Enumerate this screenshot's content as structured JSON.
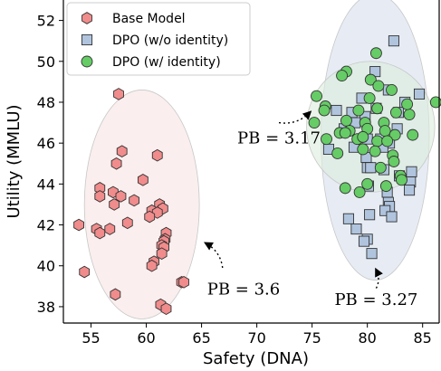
{
  "chart_data": {
    "type": "scatter",
    "xlabel": "Safety (DNA)",
    "ylabel": "Utility (MMLU)",
    "xlim": [
      52.5,
      86.5
    ],
    "ylim": [
      37.2,
      53.0
    ],
    "xticks": [
      55,
      60,
      65,
      70,
      75,
      80,
      85
    ],
    "yticks": [
      38,
      40,
      42,
      44,
      46,
      48,
      50,
      52
    ],
    "grid": false,
    "legend_position": "top-left",
    "series": [
      {
        "name": "Base Model",
        "marker": "hexagon",
        "color": "#f08c8c",
        "edge": "#333333",
        "points": [
          [
            57.5,
            48.4
          ],
          [
            57.8,
            45.6
          ],
          [
            61.0,
            45.4
          ],
          [
            57.3,
            45.0
          ],
          [
            59.7,
            44.2
          ],
          [
            55.8,
            43.8
          ],
          [
            57.0,
            43.6
          ],
          [
            55.8,
            43.4
          ],
          [
            57.7,
            43.4
          ],
          [
            58.9,
            43.2
          ],
          [
            57.1,
            43.0
          ],
          [
            61.2,
            43.0
          ],
          [
            61.5,
            42.8
          ],
          [
            60.5,
            42.7
          ],
          [
            61.0,
            42.6
          ],
          [
            60.3,
            42.4
          ],
          [
            58.3,
            42.1
          ],
          [
            53.9,
            42.0
          ],
          [
            55.5,
            41.8
          ],
          [
            56.7,
            41.8
          ],
          [
            55.8,
            41.6
          ],
          [
            61.8,
            41.6
          ],
          [
            61.7,
            41.3
          ],
          [
            61.6,
            41.2
          ],
          [
            61.4,
            41.0
          ],
          [
            61.6,
            40.9
          ],
          [
            61.4,
            40.6
          ],
          [
            60.7,
            40.2
          ],
          [
            60.5,
            40.0
          ],
          [
            54.4,
            39.7
          ],
          [
            63.2,
            39.2
          ],
          [
            63.4,
            39.2
          ],
          [
            57.2,
            38.6
          ],
          [
            61.3,
            38.1
          ],
          [
            61.8,
            37.9
          ]
        ]
      },
      {
        "name": "DPO (w/o identity)",
        "marker": "square",
        "color": "#b0c4de",
        "edge": "#333333",
        "points": [
          [
            82.4,
            51.0
          ],
          [
            80.7,
            49.5
          ],
          [
            84.7,
            48.4
          ],
          [
            82.8,
            47.5
          ],
          [
            79.8,
            47.3
          ],
          [
            78.9,
            47.0
          ],
          [
            80.0,
            46.2
          ],
          [
            82.0,
            46.0
          ],
          [
            81.4,
            45.8
          ],
          [
            76.5,
            45.7
          ],
          [
            79.9,
            45.3
          ],
          [
            80.0,
            44.8
          ],
          [
            80.3,
            44.8
          ],
          [
            84.0,
            44.6
          ],
          [
            83.9,
            44.1
          ],
          [
            81.8,
            43.6
          ],
          [
            81.9,
            43.1
          ],
          [
            82.0,
            42.9
          ],
          [
            81.6,
            42.7
          ],
          [
            80.2,
            42.5
          ],
          [
            82.2,
            42.4
          ],
          [
            78.3,
            42.3
          ],
          [
            79.0,
            41.8
          ],
          [
            80.0,
            41.3
          ],
          [
            79.7,
            41.2
          ],
          [
            80.4,
            40.6
          ],
          [
            81.5,
            44.7
          ],
          [
            78.8,
            45.8
          ],
          [
            82.7,
            46.7
          ],
          [
            77.2,
            47.6
          ],
          [
            80.8,
            47.7
          ],
          [
            83.4,
            48.0
          ],
          [
            79.5,
            48.2
          ],
          [
            81.9,
            48.6
          ],
          [
            77.9,
            46.7
          ],
          [
            83.8,
            43.7
          ],
          [
            80.1,
            43.9
          ],
          [
            81.2,
            46.2
          ],
          [
            78.6,
            47.5
          ],
          [
            82.9,
            44.4
          ]
        ]
      },
      {
        "name": "DPO (w/ identity)",
        "marker": "circle",
        "color": "#66cc66",
        "edge": "#333333",
        "points": [
          [
            80.8,
            50.4
          ],
          [
            78.1,
            49.5
          ],
          [
            77.7,
            49.3
          ],
          [
            80.3,
            49.1
          ],
          [
            81.0,
            48.8
          ],
          [
            82.2,
            48.6
          ],
          [
            75.4,
            48.3
          ],
          [
            80.2,
            48.2
          ],
          [
            76.2,
            47.8
          ],
          [
            76.1,
            47.6
          ],
          [
            79.2,
            47.6
          ],
          [
            80.9,
            47.7
          ],
          [
            82.6,
            47.5
          ],
          [
            83.8,
            47.4
          ],
          [
            86.2,
            48.0
          ],
          [
            78.1,
            47.1
          ],
          [
            79.8,
            47.0
          ],
          [
            81.5,
            47.0
          ],
          [
            75.2,
            47.0
          ],
          [
            78.4,
            46.6
          ],
          [
            77.5,
            46.5
          ],
          [
            78.0,
            46.5
          ],
          [
            80.0,
            46.7
          ],
          [
            81.6,
            46.6
          ],
          [
            82.5,
            46.4
          ],
          [
            84.1,
            46.4
          ],
          [
            76.3,
            46.2
          ],
          [
            79.1,
            46.2
          ],
          [
            80.9,
            46.1
          ],
          [
            81.8,
            46.1
          ],
          [
            79.6,
            45.7
          ],
          [
            80.7,
            45.6
          ],
          [
            82.3,
            45.4
          ],
          [
            82.4,
            45.1
          ],
          [
            81.2,
            44.8
          ],
          [
            83.0,
            44.4
          ],
          [
            83.1,
            44.2
          ],
          [
            80.0,
            44.0
          ],
          [
            78.0,
            43.8
          ],
          [
            79.3,
            43.6
          ],
          [
            77.3,
            45.5
          ],
          [
            81.7,
            43.9
          ],
          [
            79.6,
            46.3
          ],
          [
            83.6,
            47.9
          ]
        ]
      }
    ],
    "ellipses": [
      {
        "series": "Base Model",
        "cx": 59.6,
        "cy": 43.0,
        "rx": 5.2,
        "ry": 5.6,
        "color": "#f6e2e2"
      },
      {
        "series": "DPO (w/o identity)",
        "cx": 80.7,
        "cy": 46.3,
        "rx": 4.9,
        "ry": 7.0,
        "color": "#d7e0ec"
      },
      {
        "series": "DPO (w/ identity)",
        "cx": 80.3,
        "cy": 46.8,
        "rx": 5.8,
        "ry": 3.2,
        "color": "#dcecdc"
      }
    ],
    "annotations": [
      {
        "text": "PB = 3.17",
        "label_x": 72.0,
        "label_y": 46.3,
        "arrow_from": [
          72.0,
          47.0
        ],
        "arrow_to": [
          74.8,
          47.5
        ]
      },
      {
        "text": "PB = 3.6",
        "label_x": 68.8,
        "label_y": 38.9,
        "arrow_from": [
          66.9,
          39.9
        ],
        "arrow_to": [
          65.4,
          41.1
        ]
      },
      {
        "text": "PB = 3.27",
        "label_x": 80.8,
        "label_y": 38.4,
        "arrow_from": [
          80.8,
          38.9
        ],
        "arrow_to": [
          80.8,
          39.8
        ]
      }
    ]
  }
}
